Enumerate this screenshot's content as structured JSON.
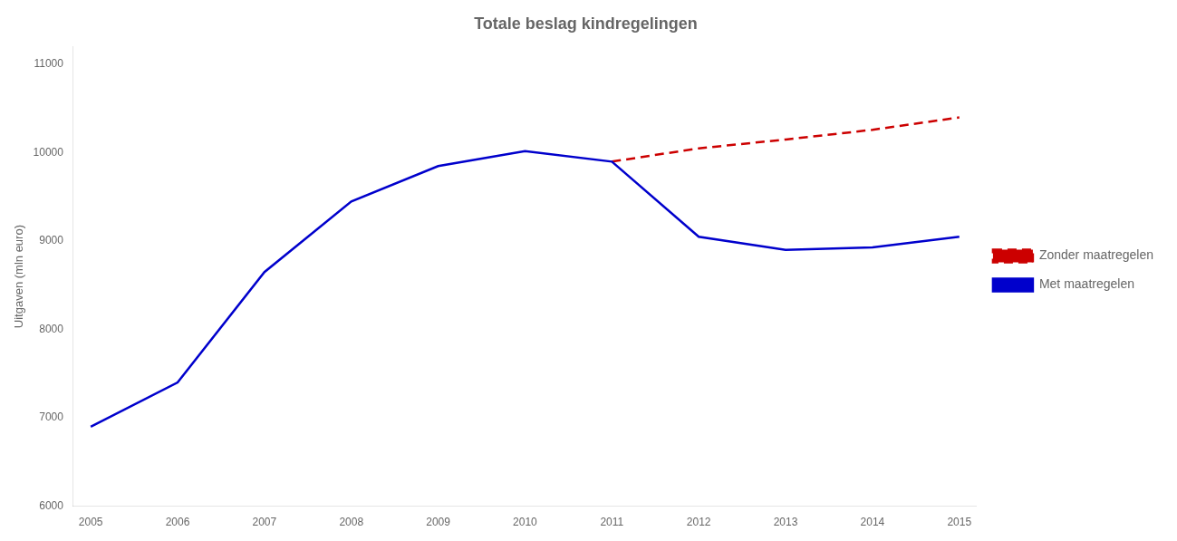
{
  "chart_data": {
    "type": "line",
    "title": "Totale beslag kindregelingen",
    "ylabel": "Uitgaven (mln euro)",
    "series": [
      {
        "name": "Met maatregelen",
        "color": "#0000CC",
        "line_style": "solid",
        "x": [
          2005,
          2006,
          2007,
          2008,
          2009,
          2010,
          2011,
          2012,
          2013,
          2014,
          2015
        ],
        "values": [
          6900,
          7400,
          8650,
          9450,
          9850,
          10020,
          9900,
          9050,
          8900,
          8930,
          9050
        ]
      },
      {
        "name": "Zonder maatregelen",
        "color": "#CC0000",
        "line_style": "dashed",
        "x": [
          2011,
          2012,
          2013,
          2014,
          2015
        ],
        "values": [
          9900,
          10050,
          10150,
          10260,
          10400
        ]
      }
    ],
    "xlim": [
      2004.8,
      2015.2
    ],
    "xticks": [
      2005,
      2006,
      2007,
      2008,
      2009,
      2010,
      2011,
      2012,
      2013,
      2014,
      2015
    ],
    "ylim": [
      6000,
      11200
    ],
    "yticks": [
      6000,
      7000,
      8000,
      9000,
      10000,
      11000
    ],
    "grid": false,
    "legend": "right"
  }
}
